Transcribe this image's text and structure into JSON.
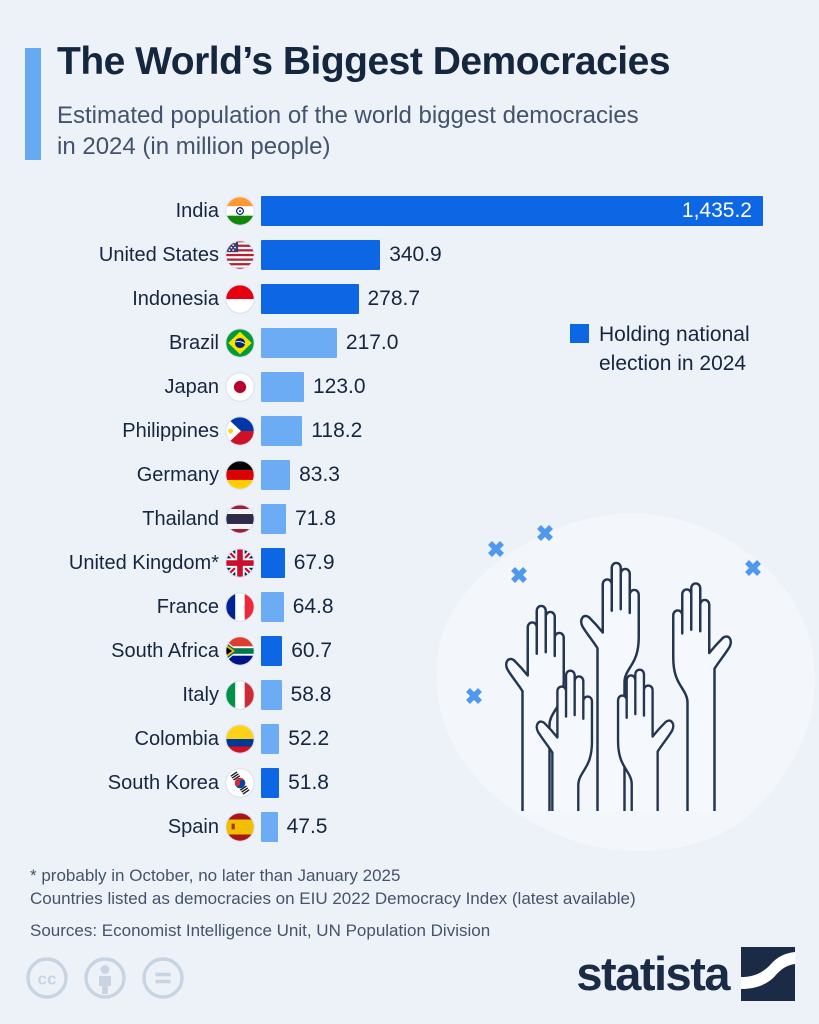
{
  "header": {
    "title": "The World’s Biggest Democracies",
    "subtitle_line1": "Estimated population of the world biggest democracies",
    "subtitle_line2": "in 2024 (in million people)"
  },
  "legend": {
    "label": "Holding national election in 2024"
  },
  "chart_data": {
    "type": "bar",
    "orientation": "horizontal",
    "title": "The World’s Biggest Democracies",
    "unit": "million people",
    "xlim": [
      0,
      1435.2
    ],
    "legend_position": "right",
    "highlight_meaning": "Holding national election in 2024",
    "rows": [
      {
        "country": "India",
        "flag": "india",
        "value": 1435.2,
        "label": "1,435.2",
        "election_2024": true
      },
      {
        "country": "United States",
        "flag": "united-states",
        "value": 340.9,
        "label": "340.9",
        "election_2024": true
      },
      {
        "country": "Indonesia",
        "flag": "indonesia",
        "value": 278.7,
        "label": "278.7",
        "election_2024": true
      },
      {
        "country": "Brazil",
        "flag": "brazil",
        "value": 217.0,
        "label": "217.0",
        "election_2024": false
      },
      {
        "country": "Japan",
        "flag": "japan",
        "value": 123.0,
        "label": "123.0",
        "election_2024": false
      },
      {
        "country": "Philippines",
        "flag": "philippines",
        "value": 118.2,
        "label": "118.2",
        "election_2024": false
      },
      {
        "country": "Germany",
        "flag": "germany",
        "value": 83.3,
        "label": "83.3",
        "election_2024": false
      },
      {
        "country": "Thailand",
        "flag": "thailand",
        "value": 71.8,
        "label": "71.8",
        "election_2024": false
      },
      {
        "country": "United Kingdom*",
        "flag": "united-kingdom",
        "value": 67.9,
        "label": "67.9",
        "election_2024": true
      },
      {
        "country": "France",
        "flag": "france",
        "value": 64.8,
        "label": "64.8",
        "election_2024": false
      },
      {
        "country": "South Africa",
        "flag": "south-africa",
        "value": 60.7,
        "label": "60.7",
        "election_2024": true
      },
      {
        "country": "Italy",
        "flag": "italy",
        "value": 58.8,
        "label": "58.8",
        "election_2024": false
      },
      {
        "country": "Colombia",
        "flag": "colombia",
        "value": 52.2,
        "label": "52.2",
        "election_2024": false
      },
      {
        "country": "South Korea",
        "flag": "south-korea",
        "value": 51.8,
        "label": "51.8",
        "election_2024": true
      },
      {
        "country": "Spain",
        "flag": "spain",
        "value": 47.5,
        "label": "47.5",
        "election_2024": false
      }
    ]
  },
  "footnotes": [
    "* probably in October, no later than January 2025",
    "Countries listed as democracies on EIU 2022 Democracy Index (latest available)"
  ],
  "source": "Sources: Economist Intelligence Unit, UN Population Division",
  "footer": {
    "brand": "statista",
    "license_icons": [
      "cc-icon",
      "attribution-icon",
      "no-derivatives-icon"
    ]
  },
  "colors": {
    "bg": "#edf1f8",
    "bar_election": "#0d67e5",
    "bar_default": "#6cacf4",
    "accent_bar": "#66aaf2",
    "title_text": "#15273f",
    "subtitle_text": "#42536b",
    "value_text": "#15273f",
    "footnote_text": "#44546a",
    "brand_navy": "#1b2b45",
    "license_icon": "#c9d4e2",
    "deco_x": "#4f97ef",
    "blob": "#f3f7fc",
    "hand_stroke": "#24364f",
    "hand_fill": "#f5f9fd"
  }
}
